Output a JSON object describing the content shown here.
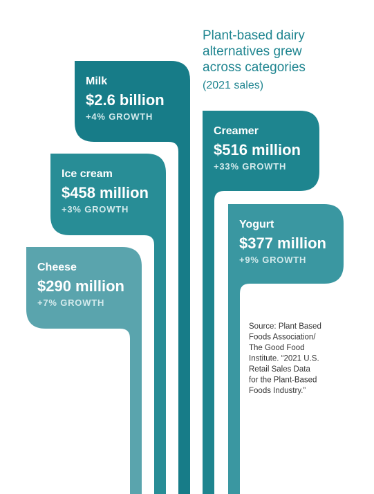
{
  "header": {
    "title_lines": [
      "Plant-based dairy",
      "alternatives grew",
      "across categories"
    ],
    "subtitle": "(2021 sales)"
  },
  "items": [
    {
      "category": "Milk",
      "sales": "$2.6 billion",
      "growth": "+4% GROWTH"
    },
    {
      "category": "Creamer",
      "sales": "$516 million",
      "growth": "+33% GROWTH"
    },
    {
      "category": "Ice cream",
      "sales": "$458 million",
      "growth": "+3% GROWTH"
    },
    {
      "category": "Yogurt",
      "sales": "$377 million",
      "growth": "+9% GROWTH"
    },
    {
      "category": "Cheese",
      "sales": "$290 million",
      "growth": "+7% GROWTH"
    }
  ],
  "source_lines": [
    "Source: Plant Based",
    "Foods Association/",
    "The Good Food",
    "Institute. “2021 U.S.",
    "Retail Sales Data",
    "for the Plant-Based",
    "Foods Industry.”"
  ]
}
